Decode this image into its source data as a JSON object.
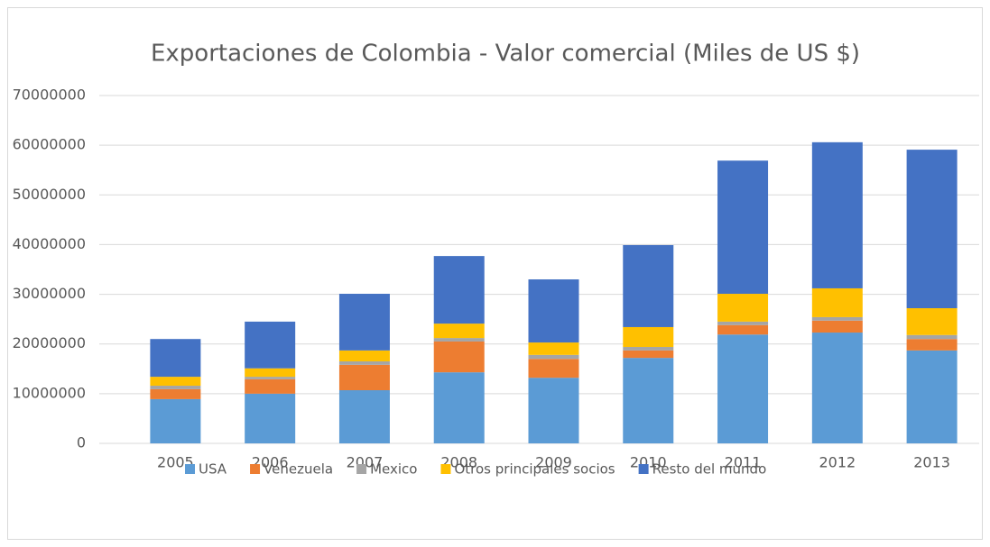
{
  "chart_data": {
    "type": "stacked_bar",
    "title": "Exportaciones de Colombia - Valor comercial (Miles de US $)",
    "categories": [
      "2005",
      "2006",
      "2007",
      "2008",
      "2009",
      "2010",
      "2011",
      "2012",
      "2013"
    ],
    "series": [
      {
        "name": "USA",
        "color": "#5b9bd5",
        "values": [
          8900000,
          10000000,
          10700000,
          14300000,
          13200000,
          17200000,
          21900000,
          22300000,
          18700000
        ]
      },
      {
        "name": "Venezuela",
        "color": "#ed7d31",
        "values": [
          2000000,
          2900000,
          5100000,
          6200000,
          3800000,
          1500000,
          1900000,
          2400000,
          2300000
        ]
      },
      {
        "name": "Mexico",
        "color": "#a5a5a5",
        "values": [
          700000,
          500000,
          700000,
          700000,
          800000,
          700000,
          700000,
          700000,
          800000
        ]
      },
      {
        "name": "Otros principales socios",
        "color": "#ffc000",
        "values": [
          1800000,
          1700000,
          2200000,
          2900000,
          2500000,
          4000000,
          5600000,
          5800000,
          5400000
        ]
      },
      {
        "name": "Resto del mundo",
        "color": "#4472c4",
        "values": [
          7600000,
          9400000,
          11400000,
          13600000,
          12700000,
          16500000,
          26800000,
          29400000,
          31900000
        ]
      }
    ],
    "ylim": [
      0,
      70000000
    ],
    "yticks": [
      0,
      10000000,
      20000000,
      30000000,
      40000000,
      50000000,
      60000000,
      70000000
    ],
    "grid": true,
    "legend": "bottom"
  }
}
